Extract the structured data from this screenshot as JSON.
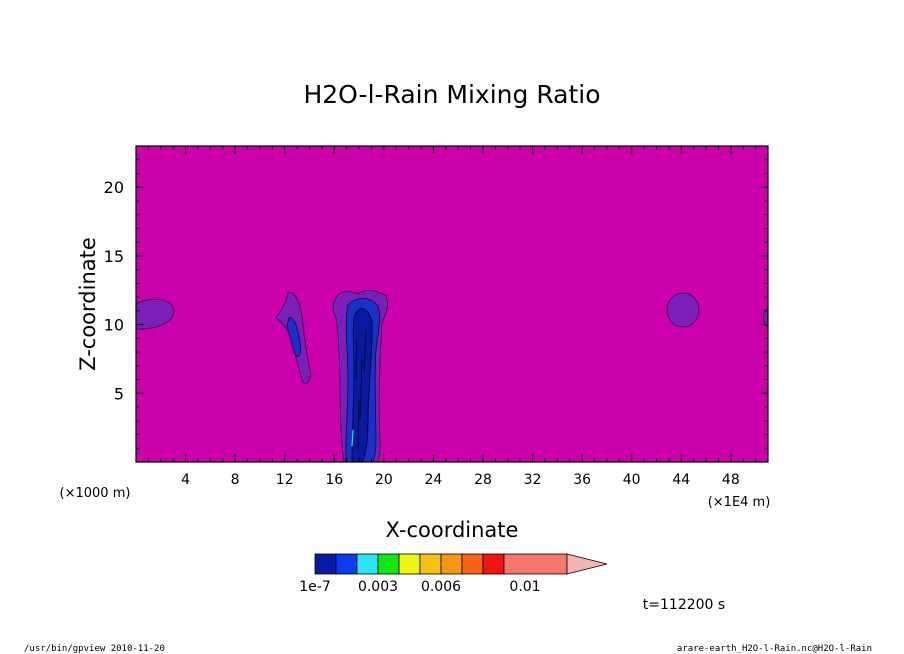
{
  "chart_data": {
    "type": "heatmap",
    "title": "H2O-l-Rain Mixing Ratio",
    "xlabel": "X-coordinate",
    "ylabel": "Z-coordinate",
    "x_unit_left": "(×1000 m)",
    "x_unit_right": "(×1E4 m)",
    "xlim": [
      0,
      51
    ],
    "ylim": [
      0,
      23
    ],
    "x_ticks": [
      4,
      8,
      12,
      16,
      20,
      24,
      28,
      32,
      36,
      40,
      44,
      48
    ],
    "y_ticks": [
      5,
      10,
      15,
      20
    ],
    "background_value_color": "#cc00aa",
    "features": [
      {
        "name": "plume",
        "x_center": 18.3,
        "z_top": 12.3,
        "z_bottom": 0,
        "level": "1e-7"
      },
      {
        "name": "small-plume",
        "x_center": 13,
        "z_top": 12,
        "z_bottom": 5.5,
        "level": "1e-7"
      },
      {
        "name": "blob-left",
        "x_center": 1.2,
        "z_center": 10.8,
        "level": "below-1e-7"
      },
      {
        "name": "blob-right",
        "x_center": 44.2,
        "z_center": 11.1,
        "level": "below-1e-7"
      }
    ],
    "colorbar": {
      "colors": [
        "#0a1a9e",
        "#0a3cf0",
        "#28e6f5",
        "#14e614",
        "#f0f514",
        "#f5c314",
        "#f59614",
        "#f56414",
        "#f01414",
        "#f5786e",
        "#f5b4b4"
      ],
      "tick_labels": [
        "1e-7",
        "0.003",
        "0.006",
        "0.01"
      ]
    },
    "time_label": "t=112200 s"
  },
  "footer": {
    "left": "/usr/bin/gpview  2010-11-20",
    "right": "arare-earth_H2O-l-Rain.nc@H2O-l-Rain"
  }
}
